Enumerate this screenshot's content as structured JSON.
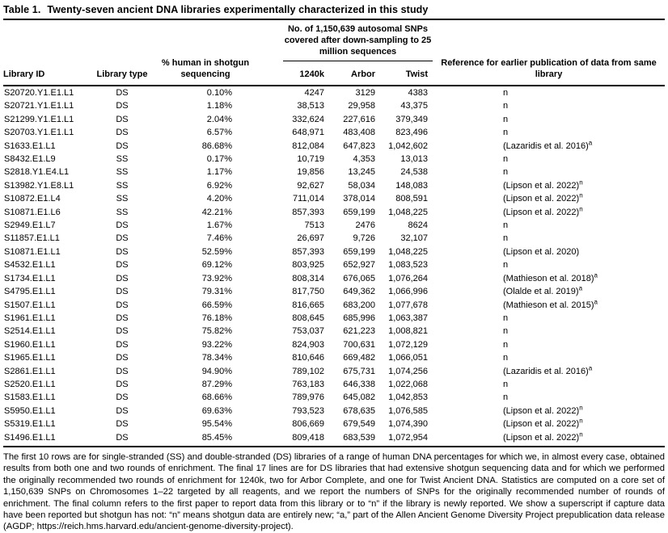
{
  "title": {
    "label": "Table 1.",
    "text": "Twenty-seven ancient DNA libraries experimentally characterized in this study"
  },
  "table": {
    "columns": {
      "library_id": "Library ID",
      "library_type": "Library type",
      "pct_human": "% human in shotgun sequencing",
      "snp_span": "No. of 1,150,639 autosomal SNPs covered after down-sampling to 25 million sequences",
      "panel_1240k": "1240k",
      "panel_arbor": "Arbor",
      "panel_twist": "Twist",
      "reference": "Reference for earlier publication of data from same library"
    },
    "rows": [
      {
        "id": "S20720.Y1.E1.L1",
        "type": "DS",
        "pct": "0.10%",
        "k1240": "4247",
        "arbor": "3129",
        "twist": "4383",
        "ref": "n",
        "sup": ""
      },
      {
        "id": "S20721.Y1.E1.L1",
        "type": "DS",
        "pct": "1.18%",
        "k1240": "38,513",
        "arbor": "29,958",
        "twist": "43,375",
        "ref": "n",
        "sup": ""
      },
      {
        "id": "S21299.Y1.E1.L1",
        "type": "DS",
        "pct": "2.04%",
        "k1240": "332,624",
        "arbor": "227,616",
        "twist": "379,349",
        "ref": "n",
        "sup": ""
      },
      {
        "id": "S20703.Y1.E1.L1",
        "type": "DS",
        "pct": "6.57%",
        "k1240": "648,971",
        "arbor": "483,408",
        "twist": "823,496",
        "ref": "n",
        "sup": ""
      },
      {
        "id": "S1633.E1.L1",
        "type": "DS",
        "pct": "86.68%",
        "k1240": "812,084",
        "arbor": "647,823",
        "twist": "1,042,602",
        "ref": "(Lazaridis et al. 2016)",
        "sup": "a"
      },
      {
        "id": "S8432.E1.L9",
        "type": "SS",
        "pct": "0.17%",
        "k1240": "10,719",
        "arbor": "4,353",
        "twist": "13,013",
        "ref": "n",
        "sup": ""
      },
      {
        "id": "S2818.Y1.E4.L1",
        "type": "SS",
        "pct": "1.17%",
        "k1240": "19,856",
        "arbor": "13,245",
        "twist": "24,538",
        "ref": "n",
        "sup": ""
      },
      {
        "id": "S13982.Y1.E8.L1",
        "type": "SS",
        "pct": "6.92%",
        "k1240": "92,627",
        "arbor": "58,034",
        "twist": "148,083",
        "ref": "(Lipson et al. 2022)",
        "sup": "n"
      },
      {
        "id": "S10872.E1.L4",
        "type": "SS",
        "pct": "4.20%",
        "k1240": "711,014",
        "arbor": "378,014",
        "twist": "808,591",
        "ref": "(Lipson et al. 2022)",
        "sup": "n"
      },
      {
        "id": "S10871.E1.L6",
        "type": "SS",
        "pct": "42.21%",
        "k1240": "857,393",
        "arbor": "659,199",
        "twist": "1,048,225",
        "ref": "(Lipson et al. 2022)",
        "sup": "n"
      },
      {
        "id": "S2949.E1.L7",
        "type": "DS",
        "pct": "1.67%",
        "k1240": "7513",
        "arbor": "2476",
        "twist": "8624",
        "ref": "n",
        "sup": ""
      },
      {
        "id": "S11857.E1.L1",
        "type": "DS",
        "pct": "7.46%",
        "k1240": "26,697",
        "arbor": "9,726",
        "twist": "32,107",
        "ref": "n",
        "sup": ""
      },
      {
        "id": "S10871.E1.L1",
        "type": "DS",
        "pct": "52.59%",
        "k1240": "857,393",
        "arbor": "659,199",
        "twist": "1,048,225",
        "ref": "(Lipson et al. 2020)",
        "sup": ""
      },
      {
        "id": "S4532.E1.L1",
        "type": "DS",
        "pct": "69.12%",
        "k1240": "803,925",
        "arbor": "652,927",
        "twist": "1,083,523",
        "ref": "n",
        "sup": ""
      },
      {
        "id": "S1734.E1.L1",
        "type": "DS",
        "pct": "73.92%",
        "k1240": "808,314",
        "arbor": "676,065",
        "twist": "1,076,264",
        "ref": "(Mathieson et al. 2018)",
        "sup": "a"
      },
      {
        "id": "S4795.E1.L1",
        "type": "DS",
        "pct": "79.31%",
        "k1240": "817,750",
        "arbor": "649,362",
        "twist": "1,066,996",
        "ref": "(Olalde et al. 2019)",
        "sup": "a"
      },
      {
        "id": "S1507.E1.L1",
        "type": "DS",
        "pct": "66.59%",
        "k1240": "816,665",
        "arbor": "683,200",
        "twist": "1,077,678",
        "ref": "(Mathieson et al. 2015)",
        "sup": "a"
      },
      {
        "id": "S1961.E1.L1",
        "type": "DS",
        "pct": "76.18%",
        "k1240": "808,645",
        "arbor": "685,996",
        "twist": "1,063,387",
        "ref": "n",
        "sup": ""
      },
      {
        "id": "S2514.E1.L1",
        "type": "DS",
        "pct": "75.82%",
        "k1240": "753,037",
        "arbor": "621,223",
        "twist": "1,008,821",
        "ref": "n",
        "sup": ""
      },
      {
        "id": "S1960.E1.L1",
        "type": "DS",
        "pct": "93.22%",
        "k1240": "824,903",
        "arbor": "700,631",
        "twist": "1,072,129",
        "ref": "n",
        "sup": ""
      },
      {
        "id": "S1965.E1.L1",
        "type": "DS",
        "pct": "78.34%",
        "k1240": "810,646",
        "arbor": "669,482",
        "twist": "1,066,051",
        "ref": "n",
        "sup": ""
      },
      {
        "id": "S2861.E1.L1",
        "type": "DS",
        "pct": "94.90%",
        "k1240": "789,102",
        "arbor": "675,731",
        "twist": "1,074,256",
        "ref": "(Lazaridis et al. 2016)",
        "sup": "a"
      },
      {
        "id": "S2520.E1.L1",
        "type": "DS",
        "pct": "87.29%",
        "k1240": "763,183",
        "arbor": "646,338",
        "twist": "1,022,068",
        "ref": "n",
        "sup": ""
      },
      {
        "id": "S1583.E1.L1",
        "type": "DS",
        "pct": "68.66%",
        "k1240": "789,976",
        "arbor": "645,082",
        "twist": "1,042,853",
        "ref": "n",
        "sup": ""
      },
      {
        "id": "S5950.E1.L1",
        "type": "DS",
        "pct": "69.63%",
        "k1240": "793,523",
        "arbor": "678,635",
        "twist": "1,076,585",
        "ref": "(Lipson et al. 2022)",
        "sup": "n"
      },
      {
        "id": "S5319.E1.L1",
        "type": "DS",
        "pct": "95.54%",
        "k1240": "806,669",
        "arbor": "679,549",
        "twist": "1,074,390",
        "ref": "(Lipson et al. 2022)",
        "sup": "n"
      },
      {
        "id": "S1496.E1.L1",
        "type": "DS",
        "pct": "85.45%",
        "k1240": "809,418",
        "arbor": "683,539",
        "twist": "1,072,954",
        "ref": "(Lipson et al. 2022)",
        "sup": "n"
      }
    ]
  },
  "footnote": "The first 10 rows are for single-stranded (SS) and double-stranded (DS) libraries of a range of human DNA percentages for which we, in almost every case, obtained results from both one and two rounds of enrichment. The final 17 lines are for DS libraries that had extensive shotgun sequencing data and for which we performed the originally recommended two rounds of enrichment for 1240k, two for Arbor Complete, and one for Twist Ancient DNA. Statistics are computed on a core set of 1,150,639 SNPs on Chromosomes 1–22 targeted by all reagents, and we report the numbers of SNPs for the originally recommended number of rounds of enrichment. The final column refers to the first paper to report data from this library or to “n” if the library is newly reported. We show a superscript if capture data have been reported but shotgun has not: “n” means shotgun data are entirely new; “a,” part of the Allen Ancient Genome Diversity Project prepublication data release (AGDP; https://reich.hms.harvard.edu/ancient-genome-diversity-project)."
}
